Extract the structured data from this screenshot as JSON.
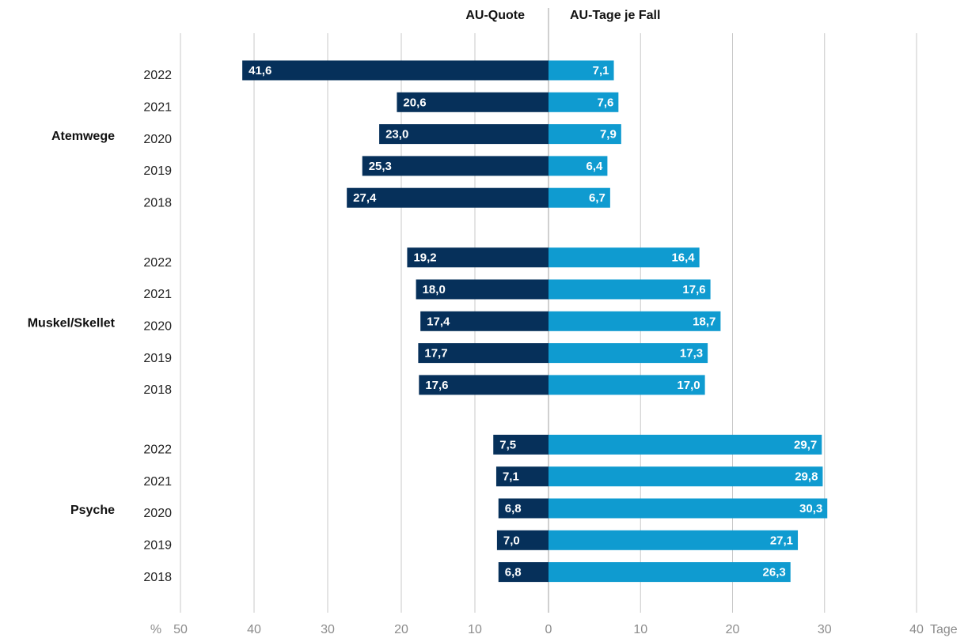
{
  "chart_data": {
    "type": "butterfly",
    "groups": [
      "Atemwege",
      "Muskel/Skellet",
      "Psyche"
    ],
    "categories": [
      "2022",
      "2021",
      "2020",
      "2019",
      "2018",
      "2022",
      "2021",
      "2020",
      "2019",
      "2018",
      "2022",
      "2021",
      "2020",
      "2019",
      "2018"
    ],
    "series": [
      {
        "name": "AU-Quote",
        "color": "#06305a",
        "axis": "left",
        "values": [
          41.6,
          20.6,
          23.0,
          25.3,
          27.4,
          19.2,
          18.0,
          17.4,
          17.7,
          17.6,
          7.5,
          7.1,
          6.8,
          7.0,
          6.8
        ],
        "value_labels": [
          "41,6",
          "20,6",
          "23,0",
          "25,3",
          "27,4",
          "19,2",
          "18,0",
          "17,4",
          "17,7",
          "17,6",
          "7,5",
          "7,1",
          "6,8",
          "7,0",
          "6,8"
        ]
      },
      {
        "name": "AU-Tage je Fall",
        "color": "#0f9bd0",
        "axis": "right",
        "values": [
          7.1,
          7.6,
          7.9,
          6.4,
          6.7,
          16.4,
          17.6,
          18.7,
          17.3,
          17.0,
          29.7,
          29.8,
          30.3,
          27.1,
          26.3
        ],
        "value_labels": [
          "7,1",
          "7,6",
          "7,9",
          "6,4",
          "6,7",
          "16,4",
          "17,6",
          "18,7",
          "17,3",
          "17,0",
          "29,7",
          "29,8",
          "30,3",
          "27,1",
          "26,3"
        ]
      }
    ],
    "xlabel_left": "%",
    "xlabel_right": "Tage",
    "xlim_left": [
      50,
      0
    ],
    "xticks_left": [
      50,
      40,
      30,
      20,
      10
    ],
    "xlim_right": [
      0,
      40
    ],
    "xticks_right": [
      0,
      10,
      20,
      30,
      40
    ],
    "grid": true
  }
}
